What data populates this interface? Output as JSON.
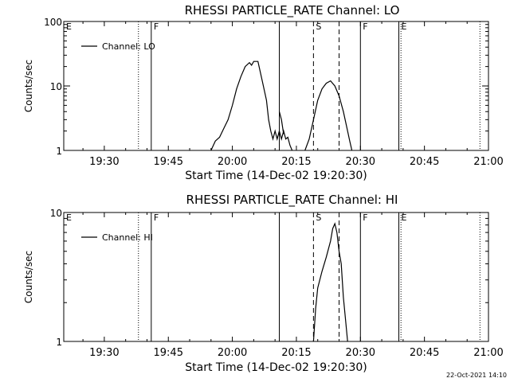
{
  "window": {
    "timestamp": "22-Oct-2021 14:10"
  },
  "chart_data": [
    {
      "type": "line",
      "title": "RHESSI PARTICLE_RATE Channel: LO",
      "xlabel": "Start Time (14-Dec-02 19:20:30)",
      "ylabel": "Counts/sec",
      "yscale": "log",
      "ylim": [
        1,
        100
      ],
      "yticks": [
        {
          "value": 1,
          "label": "1"
        },
        {
          "value": 10,
          "label": "10"
        },
        {
          "value": 100,
          "label": "100"
        }
      ],
      "xlim": [
        "19:20:30",
        "21:00:00"
      ],
      "xticks": [
        {
          "time": "19:30",
          "label": "19:30"
        },
        {
          "time": "19:45",
          "label": "19:45"
        },
        {
          "time": "20:00",
          "label": "20:00"
        },
        {
          "time": "20:15",
          "label": "20:15"
        },
        {
          "time": "20:30",
          "label": "20:30"
        },
        {
          "time": "20:45",
          "label": "20:45"
        },
        {
          "time": "21:00",
          "label": "21:00"
        }
      ],
      "legend": {
        "label": "Channel: LO",
        "placement": "top-left"
      },
      "markers": [
        {
          "time": "19:20:30",
          "style": "solid",
          "label": "E"
        },
        {
          "time": "19:38:00",
          "style": "dotted",
          "label": ""
        },
        {
          "time": "19:41:00",
          "style": "solid",
          "label": "F"
        },
        {
          "time": "20:11:00",
          "style": "solid",
          "label": ""
        },
        {
          "time": "20:19:00",
          "style": "dashed",
          "label": "S"
        },
        {
          "time": "20:25:00",
          "style": "dashed",
          "label": ""
        },
        {
          "time": "20:30:00",
          "style": "solid",
          "label": "F"
        },
        {
          "time": "20:39:00",
          "style": "solid",
          "label": "E"
        },
        {
          "time": "20:39:30",
          "style": "dotted",
          "label": ""
        },
        {
          "time": "20:58:00",
          "style": "dotted",
          "label": ""
        }
      ],
      "series": [
        {
          "segments": [
            [
              [
                "19:55:00",
                1
              ],
              [
                "19:56:00",
                1.4
              ],
              [
                "19:57:00",
                1.6
              ],
              [
                "19:58:00",
                2.2
              ],
              [
                "19:59:00",
                3
              ],
              [
                "20:00:00",
                5
              ],
              [
                "20:01:00",
                9
              ],
              [
                "20:02:00",
                14
              ],
              [
                "20:03:00",
                20
              ],
              [
                "20:04:00",
                23
              ],
              [
                "20:04:30",
                21
              ],
              [
                "20:05:00",
                24
              ],
              [
                "20:06:00",
                24
              ],
              [
                "20:07:00",
                12
              ],
              [
                "20:08:00",
                6
              ],
              [
                "20:08:30",
                3
              ],
              [
                "20:09:00",
                2
              ],
              [
                "20:09:30",
                1.5
              ],
              [
                "20:10:00",
                2
              ],
              [
                "20:10:30",
                1.5
              ],
              [
                "20:11:00",
                2
              ],
              [
                "20:11:30",
                1.5
              ],
              [
                "20:12:00",
                2
              ],
              [
                "20:12:30",
                1.5
              ],
              [
                "20:13:00",
                1.6
              ],
              [
                "20:13:30",
                1.2
              ],
              [
                "20:14:00",
                1
              ]
            ],
            [
              [
                "20:11:00",
                4
              ],
              [
                "20:11:30",
                3
              ],
              [
                "20:12:00",
                1.8
              ]
            ],
            [
              [
                "20:17:00",
                1
              ],
              [
                "20:18:00",
                1.5
              ],
              [
                "20:19:00",
                3
              ],
              [
                "20:20:00",
                6
              ],
              [
                "20:21:00",
                9
              ],
              [
                "20:22:00",
                11
              ],
              [
                "20:23:00",
                12
              ],
              [
                "20:24:00",
                10
              ],
              [
                "20:25:00",
                7
              ],
              [
                "20:26:00",
                4
              ],
              [
                "20:27:00",
                2
              ],
              [
                "20:27:30",
                1.4
              ],
              [
                "20:28:00",
                1
              ]
            ]
          ]
        }
      ]
    },
    {
      "type": "line",
      "title": "RHESSI PARTICLE_RATE Channel: HI",
      "xlabel": "Start Time (14-Dec-02 19:20:30)",
      "ylabel": "Counts/sec",
      "yscale": "log",
      "ylim": [
        1,
        10
      ],
      "yticks": [
        {
          "value": 1,
          "label": "1"
        },
        {
          "value": 10,
          "label": "10"
        }
      ],
      "xlim": [
        "19:20:30",
        "21:00:00"
      ],
      "xticks": [
        {
          "time": "19:30",
          "label": "19:30"
        },
        {
          "time": "19:45",
          "label": "19:45"
        },
        {
          "time": "20:00",
          "label": "20:00"
        },
        {
          "time": "20:15",
          "label": "20:15"
        },
        {
          "time": "20:30",
          "label": "20:30"
        },
        {
          "time": "20:45",
          "label": "20:45"
        },
        {
          "time": "21:00",
          "label": "21:00"
        }
      ],
      "legend": {
        "label": "Channel: HI",
        "placement": "top-left"
      },
      "markers": [
        {
          "time": "19:20:30",
          "style": "solid",
          "label": "E"
        },
        {
          "time": "19:38:00",
          "style": "dotted",
          "label": ""
        },
        {
          "time": "19:41:00",
          "style": "solid",
          "label": "F"
        },
        {
          "time": "20:11:00",
          "style": "solid",
          "label": ""
        },
        {
          "time": "20:19:00",
          "style": "dashed",
          "label": "S"
        },
        {
          "time": "20:25:00",
          "style": "dashed",
          "label": ""
        },
        {
          "time": "20:30:00",
          "style": "solid",
          "label": "F"
        },
        {
          "time": "20:39:00",
          "style": "solid",
          "label": "E"
        },
        {
          "time": "20:39:30",
          "style": "dotted",
          "label": ""
        },
        {
          "time": "20:58:00",
          "style": "dotted",
          "label": ""
        }
      ],
      "series": [
        {
          "segments": [
            [
              [
                "20:19:00",
                1
              ],
              [
                "20:19:30",
                1.8
              ],
              [
                "20:20:00",
                2.6
              ],
              [
                "20:21:00",
                3.5
              ],
              [
                "20:22:00",
                4.5
              ],
              [
                "20:23:00",
                6
              ],
              [
                "20:23:30",
                7.5
              ],
              [
                "20:24:00",
                8.2
              ],
              [
                "20:24:30",
                7
              ],
              [
                "20:25:00",
                5
              ],
              [
                "20:25:30",
                4
              ],
              [
                "20:26:00",
                2.2
              ],
              [
                "20:26:30",
                1.5
              ],
              [
                "20:27:00",
                1
              ]
            ]
          ]
        }
      ]
    }
  ]
}
